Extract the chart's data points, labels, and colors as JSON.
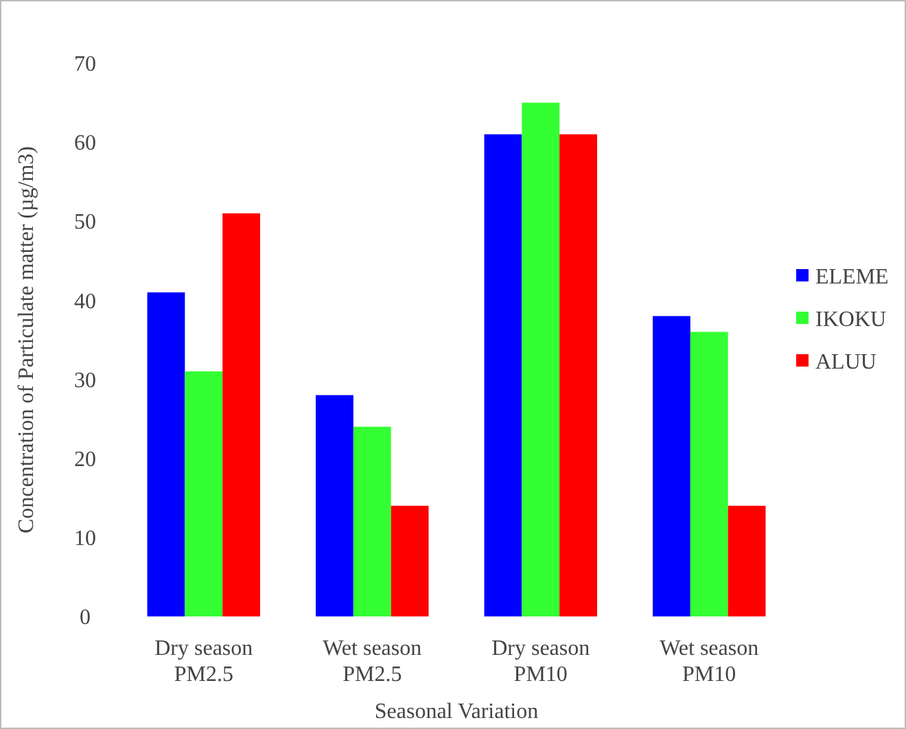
{
  "chart_data": {
    "type": "bar",
    "xlabel": "Seasonal Variation",
    "ylabel": "Concentration of Particulate matter (µg/m3)",
    "categories": [
      "Dry season\nPM2.5",
      "Wet season\nPM2.5",
      "Dry season\nPM10",
      "Wet season\nPM10"
    ],
    "series": [
      {
        "name": "ELEME",
        "color": "#0000ff",
        "values": [
          41,
          28,
          61,
          38
        ]
      },
      {
        "name": "IKOKU",
        "color": "#33ff33",
        "values": [
          31,
          24,
          65,
          36
        ]
      },
      {
        "name": "ALUU",
        "color": "#ff0000",
        "values": [
          51,
          14,
          61,
          14
        ]
      }
    ],
    "ylim": [
      0,
      70
    ],
    "yticks": [
      0,
      10,
      20,
      30,
      40,
      50,
      60,
      70
    ],
    "grid": false,
    "legend": "right"
  }
}
